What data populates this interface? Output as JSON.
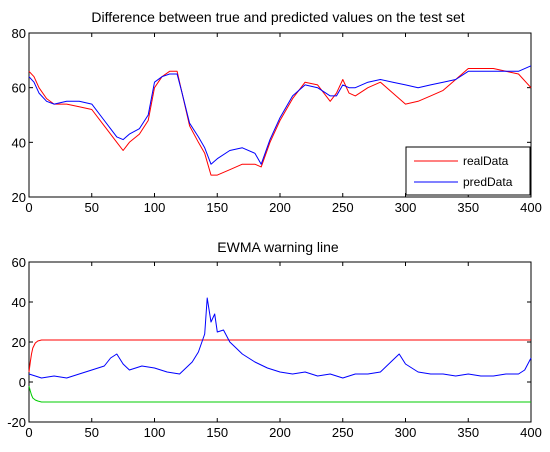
{
  "chart_data": [
    {
      "type": "line",
      "title": "Difference between true and predicted values on the test set",
      "xlim": [
        0,
        400
      ],
      "ylim": [
        20,
        80
      ],
      "xticks": [
        0,
        50,
        100,
        150,
        200,
        250,
        300,
        350,
        400
      ],
      "yticks": [
        20,
        40,
        60,
        80
      ],
      "grid": false,
      "legend": "bottom-right",
      "series": [
        {
          "name": "realData",
          "color": "#ff0000",
          "x": [
            0,
            4,
            8,
            14,
            20,
            30,
            40,
            50,
            60,
            70,
            75,
            80,
            88,
            95,
            100,
            106,
            112,
            118,
            122,
            128,
            135,
            140,
            145,
            150,
            160,
            170,
            180,
            185,
            192,
            200,
            210,
            220,
            230,
            240,
            245,
            250,
            255,
            260,
            270,
            280,
            290,
            300,
            310,
            320,
            330,
            340,
            350,
            360,
            370,
            380,
            390,
            400
          ],
          "values": [
            66,
            64,
            60,
            56,
            54,
            54,
            53,
            52,
            46,
            40,
            37,
            40,
            43,
            48,
            60,
            64,
            66,
            66,
            58,
            46,
            40,
            36,
            28,
            28,
            30,
            32,
            32,
            31,
            40,
            48,
            56,
            62,
            61,
            55,
            58,
            63,
            58,
            57,
            60,
            62,
            58,
            54,
            55,
            57,
            59,
            63,
            67,
            67,
            67,
            66,
            65,
            60
          ]
        },
        {
          "name": "predData",
          "color": "#0000ff",
          "x": [
            0,
            4,
            8,
            14,
            20,
            30,
            40,
            50,
            60,
            70,
            75,
            80,
            88,
            95,
            100,
            106,
            112,
            118,
            122,
            128,
            135,
            140,
            145,
            150,
            160,
            170,
            180,
            185,
            192,
            200,
            210,
            220,
            230,
            240,
            245,
            250,
            255,
            260,
            270,
            280,
            290,
            300,
            310,
            320,
            330,
            340,
            350,
            360,
            370,
            380,
            390,
            400
          ],
          "values": [
            64,
            62,
            58,
            55,
            54,
            55,
            55,
            54,
            48,
            42,
            41,
            43,
            45,
            50,
            62,
            64,
            65,
            65,
            58,
            47,
            42,
            38,
            32,
            34,
            37,
            38,
            36,
            32,
            41,
            49,
            57,
            61,
            60,
            57,
            57,
            61,
            60,
            60,
            62,
            63,
            62,
            61,
            60,
            61,
            62,
            63,
            66,
            66,
            66,
            66,
            66,
            68
          ]
        }
      ]
    },
    {
      "type": "line",
      "title": "EWMA warning line",
      "xlim": [
        0,
        400
      ],
      "ylim": [
        -20,
        60
      ],
      "xticks": [
        0,
        50,
        100,
        150,
        200,
        250,
        300,
        350,
        400
      ],
      "yticks": [
        -20,
        0,
        20,
        40,
        60
      ],
      "grid": false,
      "series": [
        {
          "color": "#ff0000",
          "x": [
            0,
            1,
            2,
            3,
            5,
            7,
            10,
            400
          ],
          "values": [
            5,
            10,
            14,
            17,
            19.5,
            20.5,
            21,
            21
          ]
        },
        {
          "color": "#00cc00",
          "x": [
            0,
            1,
            2,
            3,
            5,
            7,
            10,
            400
          ],
          "values": [
            -2,
            -4.5,
            -6.5,
            -8,
            -9,
            -9.5,
            -10,
            -10
          ]
        },
        {
          "color": "#0000ff",
          "x": [
            0,
            5,
            10,
            20,
            30,
            40,
            50,
            60,
            65,
            70,
            75,
            80,
            90,
            100,
            110,
            120,
            130,
            135,
            140,
            142,
            145,
            148,
            150,
            155,
            160,
            165,
            170,
            180,
            190,
            200,
            210,
            220,
            230,
            240,
            250,
            260,
            270,
            280,
            290,
            295,
            300,
            310,
            320,
            330,
            340,
            350,
            360,
            370,
            380,
            390,
            395,
            400
          ],
          "values": [
            4,
            3,
            2,
            3,
            2,
            4,
            6,
            8,
            12,
            14,
            9,
            6,
            8,
            7,
            5,
            4,
            10,
            15,
            24,
            42,
            30,
            34,
            25,
            26,
            20,
            17,
            14,
            10,
            7,
            5,
            4,
            5,
            3,
            4,
            2,
            4,
            4,
            5,
            11,
            14,
            9,
            5,
            4,
            4,
            3,
            4,
            3,
            3,
            4,
            4,
            6,
            12
          ]
        }
      ]
    }
  ]
}
